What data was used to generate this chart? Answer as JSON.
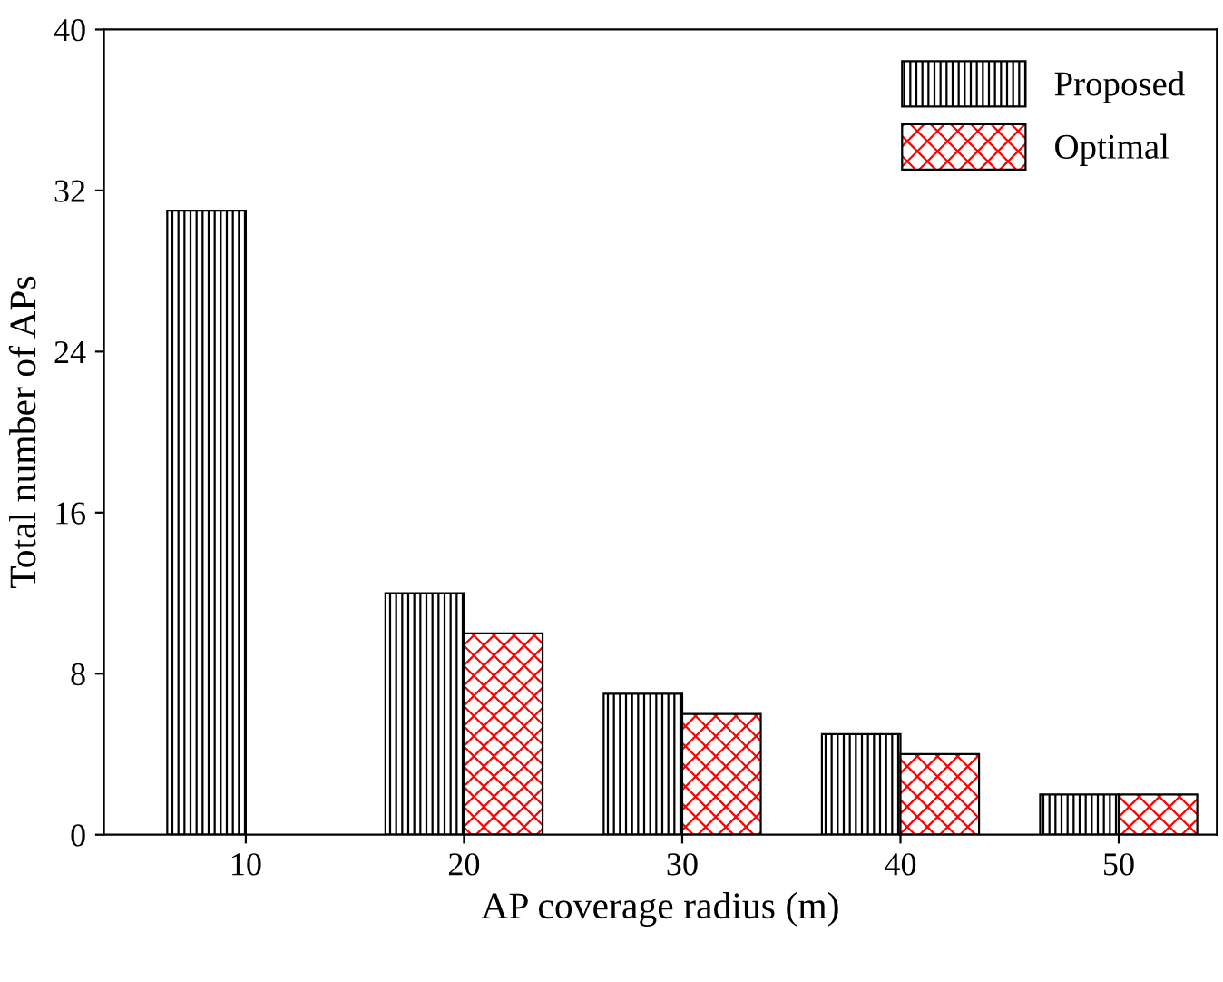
{
  "chart_data": {
    "type": "bar",
    "xlabel": "AP coverage radius (m)",
    "ylabel": "Total number of APs",
    "categories": [
      "10",
      "20",
      "30",
      "40",
      "50"
    ],
    "series": [
      {
        "name": "Proposed",
        "color": "#000000",
        "values": [
          31,
          12,
          7,
          5,
          2
        ]
      },
      {
        "name": "Optimal",
        "color": "#ff0000",
        "values": [
          null,
          10,
          6,
          4,
          2
        ]
      }
    ],
    "ylim": [
      0,
      40
    ],
    "yticks": [
      0,
      8,
      16,
      24,
      32,
      40
    ],
    "grid": false,
    "legend": "top right"
  }
}
